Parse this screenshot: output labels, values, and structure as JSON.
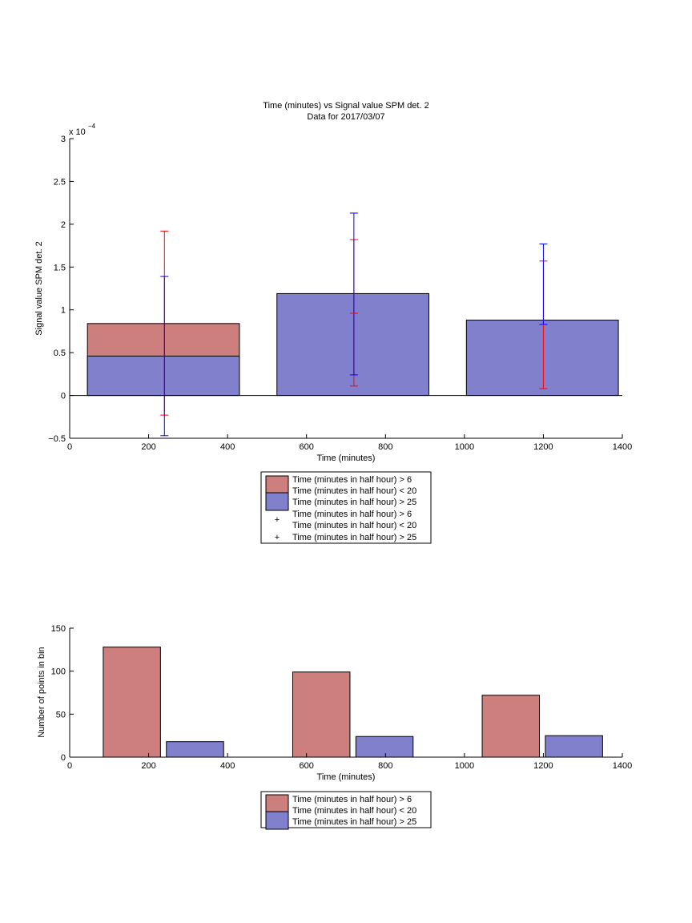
{
  "colors": {
    "bin1": "#cc7f7c",
    "bin2": "#8080cc",
    "err_red": "#ff0000",
    "err_blue": "#0000ff",
    "axis": "#000000"
  },
  "chart_data": [
    {
      "type": "bar",
      "title": "Time (minutes) vs Signal value SPM det. 2",
      "subtitle": "Data for 2017/03/07",
      "xlabel": "Time (minutes)",
      "ylabel": "Signal value SPM det. 2",
      "y_exponent_label": "x 10",
      "y_exponent_power": "−4",
      "xlim": [
        0,
        1400
      ],
      "ylim": [
        -0.5,
        3
      ],
      "xticks": [
        0,
        200,
        400,
        600,
        800,
        1000,
        1200,
        1400
      ],
      "xtick_labels": [
        "0",
        "200",
        "400",
        "600",
        "800",
        "1000",
        "1200",
        "1400"
      ],
      "yticks": [
        -0.5,
        0,
        0.5,
        1,
        1.5,
        2,
        2.5,
        3
      ],
      "ytick_labels": [
        "−0.5",
        "0",
        "0.5",
        "1",
        "1.5",
        "2",
        "2.5",
        "3"
      ],
      "bars": [
        {
          "x_start": 45,
          "x_end": 430,
          "value": 0.84,
          "series": 0
        },
        {
          "x_start": 45,
          "x_end": 430,
          "value": 0.46,
          "series": 1
        },
        {
          "x_start": 525,
          "x_end": 910,
          "value": 1.19,
          "series": 1
        },
        {
          "x_start": 1005,
          "x_end": 1390,
          "value": 0.88,
          "series": 1
        }
      ],
      "errorbars": [
        {
          "x": 240,
          "low": -0.23,
          "high": 1.92,
          "series": 0
        },
        {
          "x": 240,
          "low": -0.47,
          "high": 1.39,
          "series": 1
        },
        {
          "x": 720,
          "low": 0.11,
          "high": 1.82,
          "series": 0
        },
        {
          "x": 720,
          "low": 0.24,
          "high": 2.13,
          "series": 1
        },
        {
          "x": 1200,
          "low": 0.08,
          "high": 1.57,
          "series": 0
        },
        {
          "x": 1200,
          "low": 0.83,
          "high": 1.77,
          "series": 1
        }
      ],
      "error_midpoints": [
        {
          "x": 720,
          "value": 0.96,
          "series": 0
        }
      ],
      "legend": [
        {
          "kind": "patch",
          "series": 0,
          "lines": [
            "Time (minutes in half hour) > 6",
            "Time (minutes in half hour) < 20"
          ]
        },
        {
          "kind": "patch",
          "series": 1,
          "lines": [
            "Time (minutes in half hour) > 25"
          ]
        },
        {
          "kind": "marker",
          "series": 0,
          "lines": [
            "Time (minutes in half hour) > 6",
            "Time (minutes in half hour) < 20"
          ]
        },
        {
          "kind": "marker",
          "series": 1,
          "lines": [
            "Time (minutes in half hour) > 25"
          ]
        }
      ],
      "legend_placement": "below plot, centered"
    },
    {
      "type": "bar",
      "title": "",
      "xlabel": "Time (minutes)",
      "ylabel": "Number of points in bin",
      "xlim": [
        0,
        1400
      ],
      "ylim": [
        0,
        150
      ],
      "xticks": [
        0,
        200,
        400,
        600,
        800,
        1000,
        1200,
        1400
      ],
      "xtick_labels": [
        "0",
        "200",
        "400",
        "600",
        "800",
        "1000",
        "1200",
        "1400"
      ],
      "yticks": [
        0,
        50,
        100,
        150
      ],
      "ytick_labels": [
        "0",
        "50",
        "100",
        "150"
      ],
      "bars": [
        {
          "x_start": 85,
          "x_end": 230,
          "value": 128,
          "series": 0
        },
        {
          "x_start": 245,
          "x_end": 390,
          "value": 18,
          "series": 1
        },
        {
          "x_start": 565,
          "x_end": 710,
          "value": 99,
          "series": 0
        },
        {
          "x_start": 725,
          "x_end": 870,
          "value": 24,
          "series": 1
        },
        {
          "x_start": 1045,
          "x_end": 1190,
          "value": 72,
          "series": 0
        },
        {
          "x_start": 1205,
          "x_end": 1350,
          "value": 25,
          "series": 1
        }
      ],
      "legend": [
        {
          "kind": "patch",
          "series": 0,
          "lines": [
            "Time (minutes in half hour) > 6",
            "Time (minutes in half hour) < 20"
          ]
        },
        {
          "kind": "patch",
          "series": 1,
          "lines": [
            "Time (minutes in half hour) > 25"
          ]
        }
      ],
      "legend_placement": "below plot, centered"
    }
  ]
}
